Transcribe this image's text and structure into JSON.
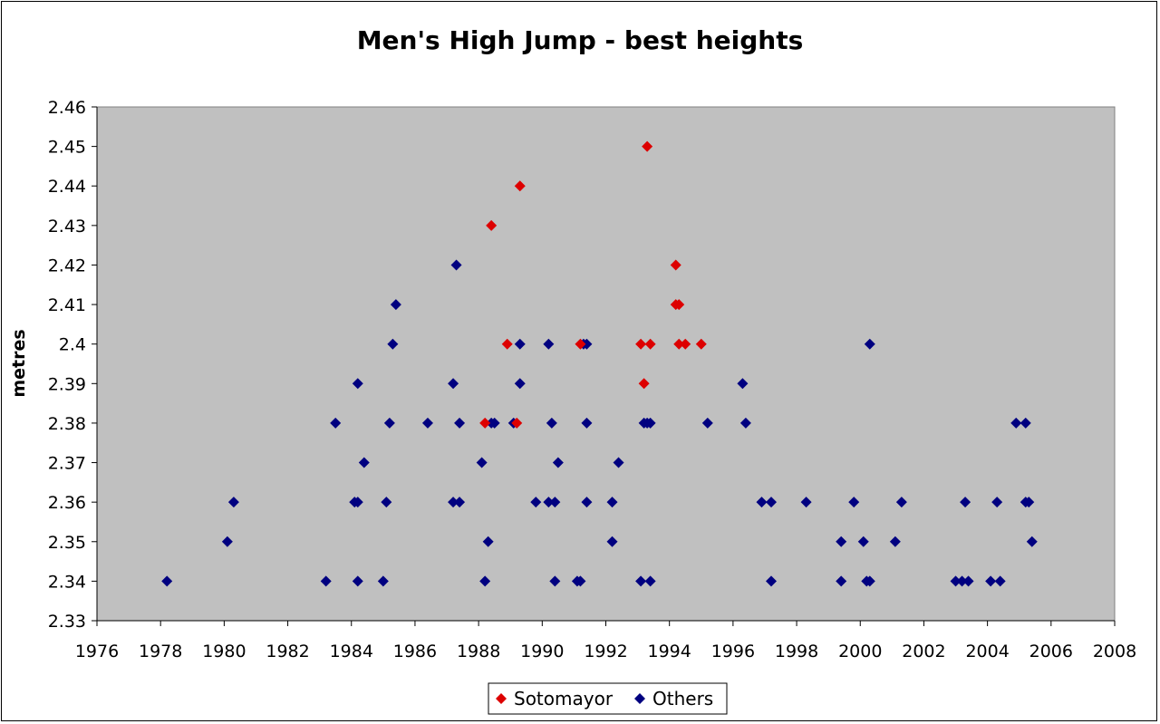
{
  "chart_data": {
    "type": "scatter",
    "title": "Men's High Jump - best heights",
    "xlabel": "",
    "ylabel": "metres",
    "xlim": [
      1976,
      2008
    ],
    "ylim": [
      2.33,
      2.46
    ],
    "xticks": [
      "1976",
      "1978",
      "1980",
      "1982",
      "1984",
      "1986",
      "1988",
      "1990",
      "1992",
      "1994",
      "1996",
      "1998",
      "2000",
      "2002",
      "2004",
      "2006",
      "2008"
    ],
    "yticks": [
      "2.33",
      "2.34",
      "2.35",
      "2.36",
      "2.37",
      "2.38",
      "2.39",
      "2.4",
      "2.41",
      "2.42",
      "2.43",
      "2.44",
      "2.45",
      "2.46"
    ],
    "plot_background": "#c0c0c0",
    "grid": false,
    "legend_position": "bottom-center",
    "series": [
      {
        "name": "Sotomayor",
        "color": "#dd0000",
        "marker": "diamond",
        "points": [
          [
            1988.2,
            2.38
          ],
          [
            1988.4,
            2.43
          ],
          [
            1988.9,
            2.4
          ],
          [
            1989.2,
            2.38
          ],
          [
            1989.3,
            2.44
          ],
          [
            1991.2,
            2.4
          ],
          [
            1993.1,
            2.4
          ],
          [
            1993.2,
            2.39
          ],
          [
            1993.3,
            2.45
          ],
          [
            1993.4,
            2.4
          ],
          [
            1994.2,
            2.42
          ],
          [
            1994.2,
            2.41
          ],
          [
            1994.3,
            2.41
          ],
          [
            1994.3,
            2.4
          ],
          [
            1994.5,
            2.4
          ],
          [
            1995.0,
            2.4
          ]
        ]
      },
      {
        "name": "Others",
        "color": "#000080",
        "marker": "diamond",
        "points": [
          [
            1978.2,
            2.34
          ],
          [
            1980.1,
            2.35
          ],
          [
            1980.3,
            2.36
          ],
          [
            1983.2,
            2.34
          ],
          [
            1983.5,
            2.38
          ],
          [
            1984.1,
            2.36
          ],
          [
            1984.2,
            2.36
          ],
          [
            1984.2,
            2.39
          ],
          [
            1984.2,
            2.34
          ],
          [
            1984.4,
            2.37
          ],
          [
            1985.0,
            2.34
          ],
          [
            1985.1,
            2.36
          ],
          [
            1985.2,
            2.38
          ],
          [
            1985.3,
            2.4
          ],
          [
            1985.4,
            2.41
          ],
          [
            1986.4,
            2.38
          ],
          [
            1987.2,
            2.36
          ],
          [
            1987.2,
            2.39
          ],
          [
            1987.3,
            2.42
          ],
          [
            1987.4,
            2.36
          ],
          [
            1987.4,
            2.38
          ],
          [
            1988.1,
            2.37
          ],
          [
            1988.2,
            2.34
          ],
          [
            1988.3,
            2.35
          ],
          [
            1988.4,
            2.38
          ],
          [
            1988.5,
            2.38
          ],
          [
            1989.1,
            2.38
          ],
          [
            1989.3,
            2.39
          ],
          [
            1989.3,
            2.4
          ],
          [
            1989.8,
            2.36
          ],
          [
            1990.2,
            2.36
          ],
          [
            1990.2,
            2.4
          ],
          [
            1990.3,
            2.38
          ],
          [
            1990.4,
            2.36
          ],
          [
            1990.4,
            2.34
          ],
          [
            1990.5,
            2.37
          ],
          [
            1991.1,
            2.34
          ],
          [
            1991.2,
            2.34
          ],
          [
            1991.3,
            2.4
          ],
          [
            1991.4,
            2.4
          ],
          [
            1991.4,
            2.38
          ],
          [
            1991.4,
            2.36
          ],
          [
            1992.2,
            2.36
          ],
          [
            1992.2,
            2.35
          ],
          [
            1992.4,
            2.37
          ],
          [
            1993.1,
            2.34
          ],
          [
            1993.2,
            2.38
          ],
          [
            1993.3,
            2.38
          ],
          [
            1993.4,
            2.38
          ],
          [
            1993.4,
            2.34
          ],
          [
            1995.2,
            2.38
          ],
          [
            1996.3,
            2.39
          ],
          [
            1996.4,
            2.38
          ],
          [
            1996.9,
            2.36
          ],
          [
            1997.2,
            2.36
          ],
          [
            1997.2,
            2.34
          ],
          [
            1998.3,
            2.36
          ],
          [
            1999.4,
            2.35
          ],
          [
            1999.4,
            2.34
          ],
          [
            1999.8,
            2.36
          ],
          [
            2000.1,
            2.35
          ],
          [
            2000.2,
            2.34
          ],
          [
            2000.3,
            2.34
          ],
          [
            2000.3,
            2.4
          ],
          [
            2001.1,
            2.35
          ],
          [
            2001.3,
            2.36
          ],
          [
            2003.0,
            2.34
          ],
          [
            2003.2,
            2.34
          ],
          [
            2003.3,
            2.36
          ],
          [
            2003.4,
            2.34
          ],
          [
            2004.1,
            2.34
          ],
          [
            2004.3,
            2.36
          ],
          [
            2004.4,
            2.34
          ],
          [
            2004.9,
            2.38
          ],
          [
            2005.2,
            2.36
          ],
          [
            2005.2,
            2.38
          ],
          [
            2005.3,
            2.36
          ],
          [
            2005.4,
            2.35
          ]
        ]
      }
    ]
  }
}
